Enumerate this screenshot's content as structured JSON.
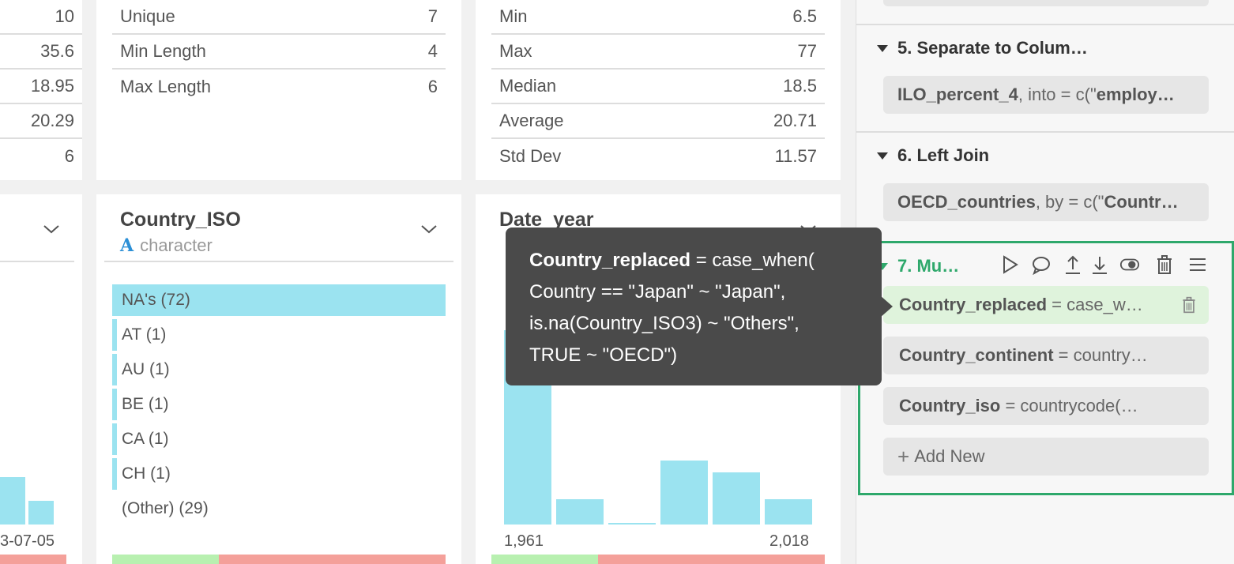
{
  "col_a": {
    "stats": [
      "10",
      "35.6",
      "18.95",
      "20.29",
      "6"
    ],
    "axis_right": "3-07-05"
  },
  "country_iso_stats": {
    "rows": [
      {
        "label": "Unique",
        "value": "7"
      },
      {
        "label": "Min Length",
        "value": "4"
      },
      {
        "label": "Max Length",
        "value": "6"
      }
    ]
  },
  "date_year_stats": {
    "rows": [
      {
        "label": "Min",
        "value": "6.5"
      },
      {
        "label": "Max",
        "value": "77"
      },
      {
        "label": "Median",
        "value": "18.5"
      },
      {
        "label": "Average",
        "value": "20.71"
      },
      {
        "label": "Std Dev",
        "value": "11.57"
      }
    ]
  },
  "country_iso": {
    "title": "Country_ISO",
    "type_icon": "A",
    "type": "character",
    "items": [
      {
        "label": "NA's (72)",
        "fraction": 1.0
      },
      {
        "label": "AT (1)",
        "fraction": 0.014
      },
      {
        "label": "AU (1)",
        "fraction": 0.014
      },
      {
        "label": "BE (1)",
        "fraction": 0.014
      },
      {
        "label": "CA (1)",
        "fraction": 0.014
      },
      {
        "label": "CH (1)",
        "fraction": 0.014
      },
      {
        "label": "(Other) (29)",
        "fraction": 0
      }
    ],
    "quality_valid_fraction": 0.32
  },
  "date_year": {
    "title": "Date_year",
    "axis_min": "1,961",
    "axis_max": "2,018",
    "hist_fractions": [
      1.0,
      0.13,
      0.01,
      0.33,
      0.27,
      0.13
    ],
    "quality_valid_fraction": 0.32
  },
  "tooltip": {
    "lines": [
      {
        "bold": "Country_replaced",
        "rest": " = case_when("
      },
      {
        "bold": "",
        "rest": " Country == \"Japan\" ~ \"Japan\","
      },
      {
        "bold": "",
        "rest": " is.na(Country_ISO3) ~ \"Others\","
      },
      {
        "bold": "",
        "rest": " TRUE ~ \"OECD\")"
      }
    ]
  },
  "steps": {
    "step5": {
      "title": "5. Separate to Colum…",
      "chip_bold": "ILO_percent_4",
      "chip_rest": ", into = c(\"",
      "chip_bold2": "employ…"
    },
    "step6": {
      "title": "6. Left Join",
      "chip_bold": "OECD_countries",
      "chip_rest": ", by = c(\"",
      "chip_bold2": "Countr…"
    },
    "step7": {
      "title": "7. Mu…",
      "accent": "#2ea86b",
      "items": [
        {
          "bold": "Country_replaced",
          "rest": " = case_w…"
        },
        {
          "bold": "Country_continent",
          "rest": " = country…"
        },
        {
          "bold": "Country_iso",
          "rest": " = countrycode(…"
        }
      ],
      "add_new": "Add New"
    }
  }
}
